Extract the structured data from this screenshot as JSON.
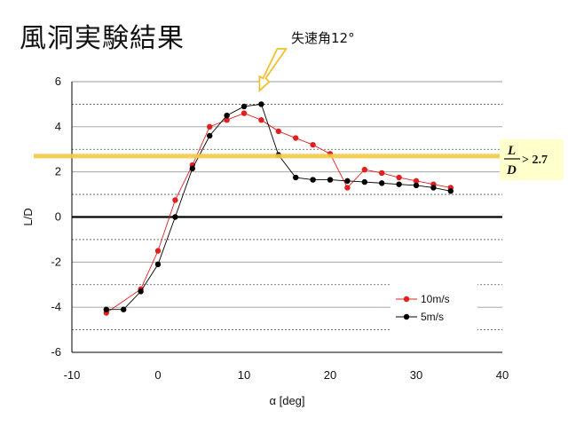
{
  "slide": {
    "title": "風洞実験結果"
  },
  "annotations": {
    "stall_label": "失速角12°",
    "ld_numerator": "L",
    "ld_denominator": "D",
    "ld_condition": "> 2.7",
    "ld_line_value": 2.7
  },
  "colors": {
    "series_10": "#e02020",
    "series_5": "#000000",
    "threshold_line": "#f5c842",
    "arrow": "#f0c030",
    "ld_box": "#ffffcc"
  },
  "chart_data": {
    "type": "scatter",
    "xlabel": "α [deg]",
    "ylabel": "L/D",
    "xlim": [
      -10,
      40
    ],
    "ylim": [
      -6,
      6
    ],
    "x_ticks": [
      "-10",
      "0",
      "10",
      "20",
      "30",
      "40"
    ],
    "y_ticks": [
      "-6",
      "-4",
      "-2",
      "0",
      "2",
      "4",
      "6"
    ],
    "legend_position": "right",
    "series": [
      {
        "name": "10m/s",
        "x": [
          -6,
          -2,
          0,
          2,
          4,
          6,
          8,
          10,
          12,
          14,
          16,
          18,
          20,
          22,
          24,
          26,
          28,
          30,
          32,
          34
        ],
        "y": [
          -4.25,
          -3.2,
          -1.5,
          0.75,
          2.3,
          4.0,
          4.3,
          4.6,
          4.3,
          3.8,
          3.5,
          3.2,
          2.8,
          1.3,
          2.1,
          1.95,
          1.75,
          1.6,
          1.45,
          1.3
        ]
      },
      {
        "name": "5m/s",
        "x": [
          -6,
          -4,
          -2,
          0,
          2,
          4,
          6,
          8,
          10,
          12,
          14,
          16,
          18,
          20,
          22,
          24,
          26,
          28,
          30,
          32,
          34
        ],
        "y": [
          -4.1,
          -4.1,
          -3.3,
          -2.1,
          0.0,
          2.15,
          3.6,
          4.5,
          4.9,
          5.0,
          2.75,
          1.75,
          1.65,
          1.65,
          1.6,
          1.55,
          1.5,
          1.45,
          1.4,
          1.3,
          1.15
        ]
      }
    ]
  }
}
